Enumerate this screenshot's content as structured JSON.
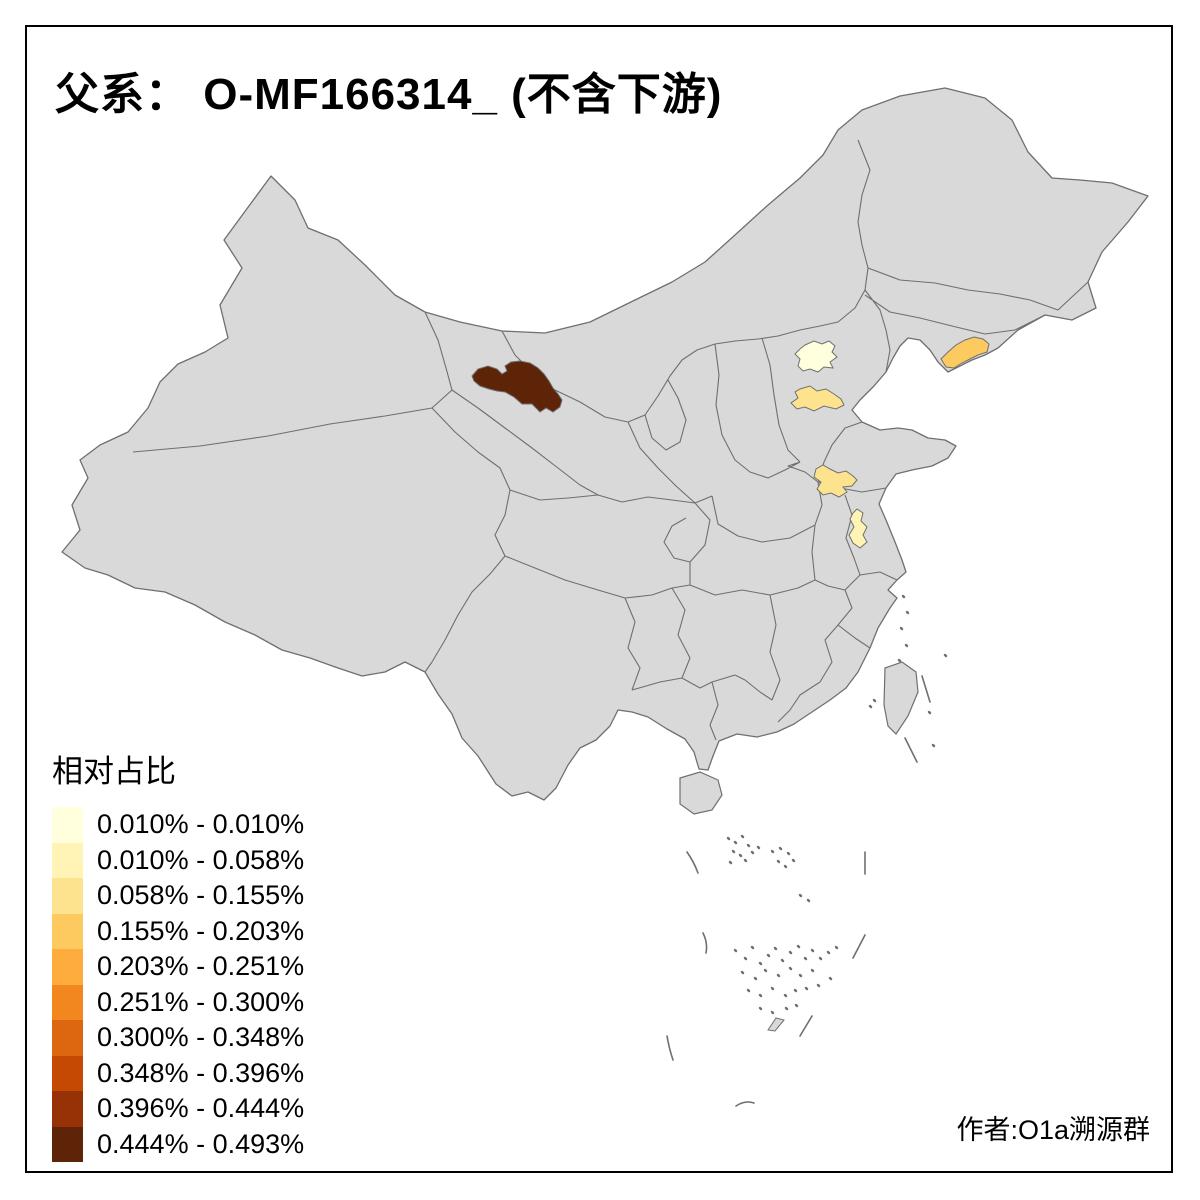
{
  "title": "父系：  O-MF166314_ (不含下游)",
  "attribution": "作者:O1a溯源群",
  "colors": {
    "land": "#D9D9D9",
    "boundary": "#6F6F6F",
    "sea": "#FFFFFF",
    "frame": "#000000",
    "text": "#000000",
    "classes": {
      "c1": "#FFFFDD",
      "c2": "#FFF4B5",
      "c3": "#FDE38E",
      "c4": "#FDCA60",
      "c5": "#FDAC3D",
      "c6": "#F3871F",
      "c7": "#DD6710",
      "c8": "#C44A04",
      "c9": "#973106",
      "c10": "#5E2407"
    }
  },
  "legend": {
    "title": "相对占比",
    "items": [
      {
        "label": "0.010% - 0.010%",
        "color": "#FFFFDD"
      },
      {
        "label": "0.010% - 0.058%",
        "color": "#FFF4B5"
      },
      {
        "label": "0.058% - 0.155%",
        "color": "#FDE38E"
      },
      {
        "label": "0.155% - 0.203%",
        "color": "#FDCA60"
      },
      {
        "label": "0.203% - 0.251%",
        "color": "#FDAC3D"
      },
      {
        "label": "0.251% - 0.300%",
        "color": "#F3871F"
      },
      {
        "label": "0.300% - 0.348%",
        "color": "#DD6710"
      },
      {
        "label": "0.348% - 0.396%",
        "color": "#C44A04"
      },
      {
        "label": "0.396% - 0.444%",
        "color": "#973106"
      },
      {
        "label": "0.444% - 0.493%",
        "color": "#5E2407"
      }
    ]
  },
  "chart_data": {
    "type": "choropleth",
    "title": "父系：  O-MF166314_ (不含下游)",
    "legend_title": "相对占比",
    "bins": [
      "0.010% - 0.010%",
      "0.010% - 0.058%",
      "0.058% - 0.155%",
      "0.155% - 0.203%",
      "0.203% - 0.251%",
      "0.251% - 0.300%",
      "0.300% - 0.348%",
      "0.348% - 0.396%",
      "0.396% - 0.444%",
      "0.444% - 0.493%"
    ],
    "highlighted_regions": [
      {
        "location": "gansu-hexi-corridor",
        "bin": "0.444% - 0.493%",
        "color": "#5E2407"
      },
      {
        "location": "beijing-area",
        "bin": "0.010% - 0.010%",
        "color": "#FFFFDD"
      },
      {
        "location": "hebei-south-of-beijing",
        "bin": "0.058% - 0.155%",
        "color": "#FDE38E"
      },
      {
        "location": "liaoning-dalian-coast",
        "bin": "0.155% - 0.203%",
        "color": "#FDCA60"
      },
      {
        "location": "southwest-shandong",
        "bin": "0.058% - 0.155%",
        "color": "#FDE38E"
      },
      {
        "location": "north-anhui-jiangsu",
        "bin": "0.010% - 0.058%",
        "color": "#FFF4B5"
      }
    ]
  }
}
